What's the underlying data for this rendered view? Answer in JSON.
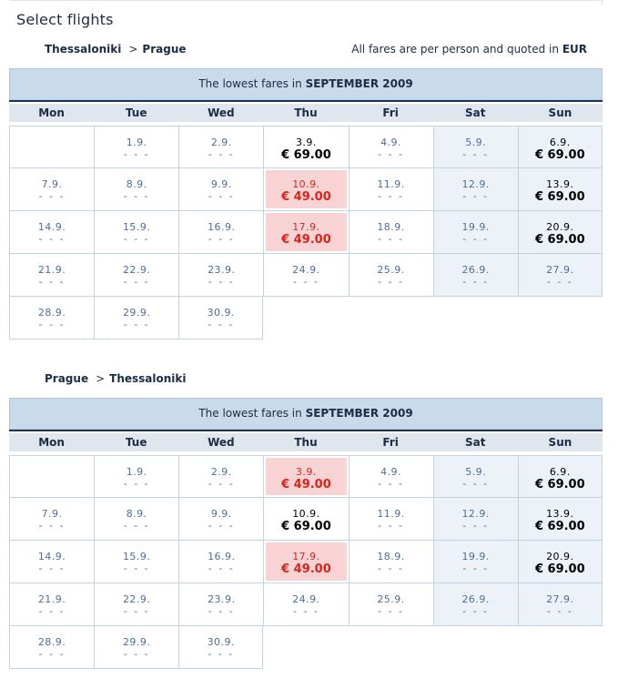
{
  "page_title": "Select flights",
  "fare_note_text": "All fares are per person and quoted in",
  "fare_note_currency": "EUR",
  "route_separator": ">",
  "weekdays": [
    "Mon",
    "Tue",
    "Wed",
    "Thu",
    "Fri",
    "Sat",
    "Sun"
  ],
  "dash": "- - -",
  "sections": [
    {
      "origin": "Thessaloniki",
      "destination": "Prague",
      "header_prefix": "The lowest fares in",
      "header_month": "SEPTEMBER 2009",
      "rows": [
        [
          null,
          {
            "date": "1.9.",
            "price": null,
            "status": "none"
          },
          {
            "date": "2.9.",
            "price": null,
            "status": "none"
          },
          {
            "date": "3.9.",
            "price": "€ 69.00",
            "status": "available"
          },
          {
            "date": "4.9.",
            "price": null,
            "status": "none"
          },
          {
            "date": "5.9.",
            "price": null,
            "status": "none"
          },
          {
            "date": "6.9.",
            "price": "€ 69.00",
            "status": "available"
          }
        ],
        [
          {
            "date": "7.9.",
            "price": null,
            "status": "none"
          },
          {
            "date": "8.9.",
            "price": null,
            "status": "none"
          },
          {
            "date": "9.9.",
            "price": null,
            "status": "none"
          },
          {
            "date": "10.9.",
            "price": "€ 49.00",
            "status": "lowest"
          },
          {
            "date": "11.9.",
            "price": null,
            "status": "none"
          },
          {
            "date": "12.9.",
            "price": null,
            "status": "none"
          },
          {
            "date": "13.9.",
            "price": "€ 69.00",
            "status": "available"
          }
        ],
        [
          {
            "date": "14.9.",
            "price": null,
            "status": "none"
          },
          {
            "date": "15.9.",
            "price": null,
            "status": "none"
          },
          {
            "date": "16.9.",
            "price": null,
            "status": "none"
          },
          {
            "date": "17.9.",
            "price": "€ 49.00",
            "status": "lowest"
          },
          {
            "date": "18.9.",
            "price": null,
            "status": "none"
          },
          {
            "date": "19.9.",
            "price": null,
            "status": "none"
          },
          {
            "date": "20.9.",
            "price": "€ 69.00",
            "status": "available"
          }
        ],
        [
          {
            "date": "21.9.",
            "price": null,
            "status": "none"
          },
          {
            "date": "22.9.",
            "price": null,
            "status": "none"
          },
          {
            "date": "23.9.",
            "price": null,
            "status": "none"
          },
          {
            "date": "24.9.",
            "price": null,
            "status": "none"
          },
          {
            "date": "25.9.",
            "price": null,
            "status": "none"
          },
          {
            "date": "26.9.",
            "price": null,
            "status": "none"
          },
          {
            "date": "27.9.",
            "price": null,
            "status": "none"
          }
        ],
        [
          {
            "date": "28.9.",
            "price": null,
            "status": "none"
          },
          {
            "date": "29.9.",
            "price": null,
            "status": "none"
          },
          {
            "date": "30.9.",
            "price": null,
            "status": "none"
          },
          null,
          null,
          null,
          null
        ]
      ]
    },
    {
      "origin": "Prague",
      "destination": "Thessaloniki",
      "header_prefix": "The lowest fares in",
      "header_month": "SEPTEMBER 2009",
      "rows": [
        [
          null,
          {
            "date": "1.9.",
            "price": null,
            "status": "none"
          },
          {
            "date": "2.9.",
            "price": null,
            "status": "none"
          },
          {
            "date": "3.9.",
            "price": "€ 49.00",
            "status": "lowest"
          },
          {
            "date": "4.9.",
            "price": null,
            "status": "none"
          },
          {
            "date": "5.9.",
            "price": null,
            "status": "none"
          },
          {
            "date": "6.9.",
            "price": "€ 69.00",
            "status": "available"
          }
        ],
        [
          {
            "date": "7.9.",
            "price": null,
            "status": "none"
          },
          {
            "date": "8.9.",
            "price": null,
            "status": "none"
          },
          {
            "date": "9.9.",
            "price": null,
            "status": "none"
          },
          {
            "date": "10.9.",
            "price": "€ 69.00",
            "status": "available"
          },
          {
            "date": "11.9.",
            "price": null,
            "status": "none"
          },
          {
            "date": "12.9.",
            "price": null,
            "status": "none"
          },
          {
            "date": "13.9.",
            "price": "€ 69.00",
            "status": "available"
          }
        ],
        [
          {
            "date": "14.9.",
            "price": null,
            "status": "none"
          },
          {
            "date": "15.9.",
            "price": null,
            "status": "none"
          },
          {
            "date": "16.9.",
            "price": null,
            "status": "none"
          },
          {
            "date": "17.9.",
            "price": "€ 49.00",
            "status": "lowest"
          },
          {
            "date": "18.9.",
            "price": null,
            "status": "none"
          },
          {
            "date": "19.9.",
            "price": null,
            "status": "none"
          },
          {
            "date": "20.9.",
            "price": "€ 69.00",
            "status": "available"
          }
        ],
        [
          {
            "date": "21.9.",
            "price": null,
            "status": "none"
          },
          {
            "date": "22.9.",
            "price": null,
            "status": "none"
          },
          {
            "date": "23.9.",
            "price": null,
            "status": "none"
          },
          {
            "date": "24.9.",
            "price": null,
            "status": "none"
          },
          {
            "date": "25.9.",
            "price": null,
            "status": "none"
          },
          {
            "date": "26.9.",
            "price": null,
            "status": "none"
          },
          {
            "date": "27.9.",
            "price": null,
            "status": "none"
          }
        ],
        [
          {
            "date": "28.9.",
            "price": null,
            "status": "none"
          },
          {
            "date": "29.9.",
            "price": null,
            "status": "none"
          },
          {
            "date": "30.9.",
            "price": null,
            "status": "none"
          },
          null,
          null,
          null,
          null
        ]
      ]
    }
  ],
  "colors": {
    "header_bg": "#c9daea",
    "weekday_bg": "#dfe6ee",
    "weekend_bg": "#ecf2f7",
    "lowest_bg": "#f7d3d3",
    "lowest_text": "#d9241c",
    "dim_text": "#4b6f99",
    "heading_text": "#1c2b46"
  }
}
